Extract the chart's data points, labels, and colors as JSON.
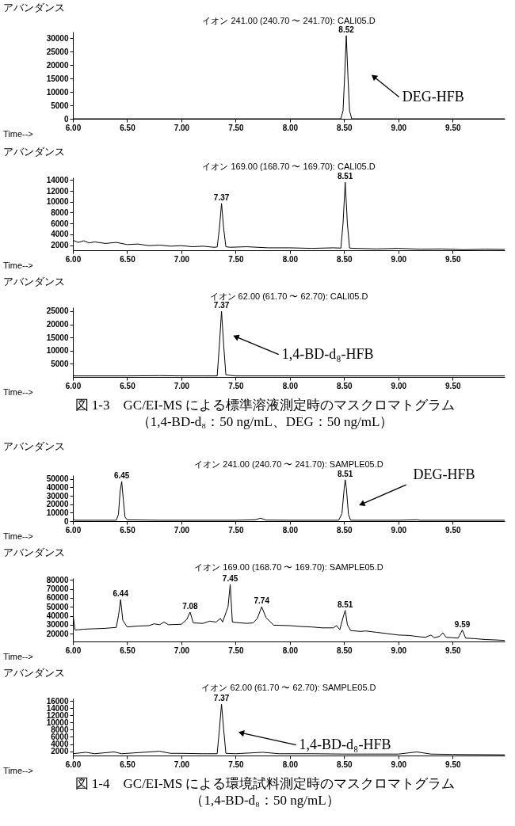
{
  "chart_data": [
    {
      "type": "line",
      "title": "イオン 241.00 (240.70 〜 241.70): CALI05.D",
      "xlabel": "Time-->",
      "ylabel": "アバンダンス",
      "xlim": [
        6.0,
        9.98
      ],
      "xticks": [
        {
          "value": 6,
          "label": "6.00"
        },
        {
          "value": 6.5,
          "label": "6.50"
        },
        {
          "value": 7,
          "label": "7.00"
        },
        {
          "value": 7.5,
          "label": "7.50"
        },
        {
          "value": 8,
          "label": "8.00"
        },
        {
          "value": 8.5,
          "label": "8.50"
        },
        {
          "value": 9,
          "label": "9.00"
        },
        {
          "value": 9.5,
          "label": "9.50"
        }
      ],
      "ylim": [
        0,
        32500
      ],
      "yticks": [
        0,
        5000,
        10000,
        15000,
        20000,
        25000,
        30000
      ],
      "series": [
        {
          "color": "#000000",
          "x": [
            6.0,
            6.5,
            7.0,
            7.5,
            8.0,
            8.47,
            8.49,
            8.505,
            8.52,
            8.535,
            8.55,
            8.57,
            9.0,
            9.5,
            9.98
          ],
          "values": [
            0,
            0,
            0,
            0,
            0,
            0,
            3000,
            16000,
            31000,
            16000,
            3000,
            0,
            0,
            0,
            0
          ]
        }
      ],
      "annotations": [
        {
          "text": "8.52",
          "x": 8.52,
          "y": 31000
        },
        {
          "text": "DEG-HFB",
          "x": 8.78,
          "y": 15500
        }
      ]
    },
    {
      "type": "line",
      "title": "イオン 169.00 (168.70 〜 169.70): CALI05.D",
      "xlabel": "Time-->",
      "ylabel": "アバンダンス",
      "xlim": [
        6.0,
        9.98
      ],
      "xticks": [
        {
          "value": 6,
          "label": "6.00"
        },
        {
          "value": 6.5,
          "label": "6.50"
        },
        {
          "value": 7,
          "label": "7.00"
        },
        {
          "value": 7.5,
          "label": "7.50"
        },
        {
          "value": 8,
          "label": "8.00"
        },
        {
          "value": 8.5,
          "label": "8.50"
        },
        {
          "value": 9,
          "label": "9.00"
        },
        {
          "value": 9.5,
          "label": "9.50"
        }
      ],
      "ylim": [
        1050,
        14500
      ],
      "yticks": [
        2000,
        4000,
        6000,
        8000,
        10000,
        12000,
        14000
      ],
      "series": [
        {
          "color": "#000000",
          "x": [
            6.0,
            6.05,
            6.1,
            6.15,
            6.2,
            6.3,
            6.4,
            6.5,
            6.6,
            6.7,
            6.8,
            6.9,
            7.0,
            7.1,
            7.2,
            7.3,
            7.33,
            7.35,
            7.37,
            7.39,
            7.41,
            7.45,
            7.6,
            7.8,
            8.0,
            8.2,
            8.4,
            8.47,
            8.49,
            8.51,
            8.53,
            8.55,
            8.6,
            8.8,
            9.0,
            9.2,
            9.4,
            9.6,
            9.8,
            9.98
          ],
          "values": [
            2900,
            2500,
            2800,
            2400,
            2600,
            2300,
            2500,
            2100,
            2200,
            1900,
            2000,
            1800,
            1900,
            1700,
            1800,
            1600,
            1650,
            5000,
            9700,
            5000,
            1700,
            1600,
            1700,
            1500,
            1500,
            1400,
            1500,
            1450,
            6000,
            13600,
            6000,
            1450,
            1400,
            1300,
            1400,
            1250,
            1300,
            1150,
            1250,
            1200
          ]
        }
      ],
      "annotations": [
        {
          "text": "7.37",
          "x": 7.37,
          "y": 9700
        },
        {
          "text": "8.51",
          "x": 8.51,
          "y": 13600
        }
      ]
    },
    {
      "type": "line",
      "title": "イオン 62.00 (61.70 〜 62.70): CALI05.D",
      "xlabel": "Time-->",
      "ylabel": "アバンダンス",
      "xlim": [
        6.0,
        9.98
      ],
      "xticks": [
        {
          "value": 6,
          "label": "6.00"
        },
        {
          "value": 6.5,
          "label": "6.50"
        },
        {
          "value": 7,
          "label": "7.00"
        },
        {
          "value": 7.5,
          "label": "7.50"
        },
        {
          "value": 8,
          "label": "8.00"
        },
        {
          "value": 8.5,
          "label": "8.50"
        },
        {
          "value": 9,
          "label": "9.00"
        },
        {
          "value": 9.5,
          "label": "9.50"
        }
      ],
      "ylim": [
        0,
        26500
      ],
      "yticks": [
        5000,
        10000,
        15000,
        20000,
        25000
      ],
      "series": [
        {
          "color": "#000000",
          "x": [
            6.0,
            6.5,
            6.8,
            7.0,
            7.2,
            7.33,
            7.35,
            7.37,
            7.39,
            7.41,
            7.5,
            8.0,
            8.5,
            9.0,
            9.5,
            9.98
          ],
          "values": [
            400,
            400,
            500,
            400,
            400,
            400,
            12000,
            25000,
            12000,
            800,
            400,
            400,
            400,
            400,
            400,
            400
          ]
        }
      ],
      "annotations": [
        {
          "text": "7.37",
          "x": 7.37,
          "y": 25000
        },
        {
          "text": "1,4-BD-d₈-HFB",
          "x": 7.51,
          "y": 15150
        },
        "図 1-3　GC/EI-MS による標準溶液測定時のマスクロマトグラム",
        "（1,4-BD-d₈：50 ng/mL、DEG：50 ng/mL）"
      ]
    },
    {
      "type": "line",
      "title": "イオン 241.00 (240.70 〜 241.70): SAMPLE05.D",
      "xlabel": "Time-->",
      "ylabel": "アバンダンス",
      "xlim": [
        6.0,
        9.98
      ],
      "xticks": [
        {
          "value": 6,
          "label": "6.00"
        },
        {
          "value": 6.5,
          "label": "6.50"
        },
        {
          "value": 7,
          "label": "7.00"
        },
        {
          "value": 7.5,
          "label": "7.50"
        },
        {
          "value": 8,
          "label": "8.00"
        },
        {
          "value": 8.5,
          "label": "8.50"
        },
        {
          "value": 9,
          "label": "9.00"
        },
        {
          "value": 9.5,
          "label": "9.50"
        }
      ],
      "ylim": [
        0,
        54500
      ],
      "yticks": [
        0,
        10000,
        20000,
        30000,
        40000,
        50000
      ],
      "series": [
        {
          "color": "#000000",
          "x": [
            6.0,
            6.02,
            6.2,
            6.4,
            6.42,
            6.435,
            6.45,
            6.465,
            6.48,
            6.5,
            6.8,
            7.0,
            7.5,
            7.68,
            7.73,
            7.78,
            8.0,
            8.45,
            8.48,
            8.5,
            8.51,
            8.52,
            8.54,
            8.56,
            9.0,
            9.17,
            9.2,
            9.5,
            9.98
          ],
          "values": [
            3000,
            1000,
            1000,
            1000,
            8000,
            35000,
            47000,
            25000,
            5000,
            1500,
            1000,
            1000,
            1000,
            1500,
            3500,
            1200,
            1000,
            1000,
            9000,
            38000,
            49000,
            40000,
            8000,
            1000,
            1000,
            1500,
            1000,
            1000,
            1000
          ]
        }
      ],
      "annotations": [
        {
          "text": "6.45",
          "x": 6.45,
          "y": 47000
        },
        {
          "text": "8.51",
          "x": 8.51,
          "y": 49000
        },
        {
          "text": "DEG-HFB",
          "x": 8.67,
          "y": 20500
        }
      ]
    },
    {
      "type": "line",
      "title": "イオン 169.00 (168.70 〜 169.70): SAMPLE05.D",
      "xlabel": "Time-->",
      "ylabel": "アバンダンス",
      "xlim": [
        6.0,
        9.98
      ],
      "xticks": [
        {
          "value": 6,
          "label": "6.00"
        },
        {
          "value": 6.5,
          "label": "6.50"
        },
        {
          "value": 7,
          "label": "7.00"
        },
        {
          "value": 7.5,
          "label": "7.50"
        },
        {
          "value": 8,
          "label": "8.00"
        },
        {
          "value": 8.5,
          "label": "8.50"
        },
        {
          "value": 9,
          "label": "9.00"
        },
        {
          "value": 9.5,
          "label": "9.50"
        }
      ],
      "ylim": [
        11300,
        82000
      ],
      "yticks": [
        20000,
        30000,
        40000,
        50000,
        60000,
        70000,
        80000
      ],
      "series": [
        {
          "color": "#000000",
          "x": [
            6.0,
            6.02,
            6.1,
            6.2,
            6.3,
            6.4,
            6.42,
            6.44,
            6.46,
            6.5,
            6.6,
            6.7,
            6.75,
            6.8,
            6.84,
            6.88,
            7.0,
            7.05,
            7.08,
            7.11,
            7.2,
            7.26,
            7.32,
            7.36,
            7.38,
            7.43,
            7.45,
            7.47,
            7.5,
            7.6,
            7.66,
            7.7,
            7.74,
            7.78,
            7.85,
            8.0,
            8.1,
            8.2,
            8.3,
            8.4,
            8.43,
            8.46,
            8.49,
            8.51,
            8.53,
            8.56,
            8.65,
            8.7,
            8.8,
            9.0,
            9.1,
            9.2,
            9.25,
            9.3,
            9.33,
            9.38,
            9.41,
            9.44,
            9.5,
            9.55,
            9.59,
            9.62,
            9.7,
            9.8,
            9.9,
            9.98
          ],
          "values": [
            42000,
            24000,
            25000,
            25500,
            26000,
            27000,
            40000,
            58000,
            35000,
            27500,
            28500,
            29000,
            31000,
            30000,
            33000,
            30000,
            30500,
            36000,
            44000,
            32000,
            31500,
            34000,
            33000,
            37000,
            33000,
            50000,
            75000,
            33000,
            32500,
            31500,
            32000,
            37000,
            50000,
            38000,
            29500,
            29000,
            28000,
            27500,
            26500,
            26500,
            29000,
            24500,
            38000,
            46000,
            30000,
            23500,
            22500,
            23000,
            21500,
            18500,
            18000,
            16500,
            16000,
            18500,
            15500,
            17000,
            21000,
            16000,
            15500,
            15000,
            24000,
            15000,
            14500,
            13500,
            13000,
            12500
          ]
        }
      ],
      "annotations": [
        {
          "text": "6.44",
          "x": 6.44,
          "y": 58000
        },
        {
          "text": "7.08",
          "x": 7.08,
          "y": 44000
        },
        {
          "text": "7.45",
          "x": 7.45,
          "y": 75000
        },
        {
          "text": "7.74",
          "x": 7.74,
          "y": 50000
        },
        {
          "text": "8.51",
          "x": 8.51,
          "y": 46000
        },
        {
          "text": "9.59",
          "x": 9.59,
          "y": 24000
        }
      ]
    },
    {
      "type": "line",
      "title": "イオン 62.00 (61.70 〜 62.70): SAMPLE05.D",
      "xlabel": "Time-->",
      "ylabel": "アバンダンス",
      "xlim": [
        6.0,
        9.98
      ],
      "xticks": [
        {
          "value": 6,
          "label": "6.00"
        },
        {
          "value": 6.5,
          "label": "6.50"
        },
        {
          "value": 7,
          "label": "7.00"
        },
        {
          "value": 7.5,
          "label": "7.50"
        },
        {
          "value": 8,
          "label": "8.00"
        },
        {
          "value": 8.5,
          "label": "8.50"
        },
        {
          "value": 9,
          "label": "9.00"
        },
        {
          "value": 9.5,
          "label": "9.50"
        }
      ],
      "ylim": [
        800,
        16700
      ],
      "yticks": [
        2000,
        4000,
        6000,
        8000,
        10000,
        12000,
        14000,
        16000
      ],
      "series": [
        {
          "color": "#000000",
          "x": [
            6.0,
            6.12,
            6.2,
            6.38,
            6.45,
            6.8,
            6.9,
            7.0,
            7.2,
            7.33,
            7.35,
            7.37,
            7.39,
            7.41,
            7.5,
            7.75,
            7.9,
            8.2,
            8.5,
            9.0,
            9.17,
            9.3,
            9.5,
            9.98
          ],
          "values": [
            1300,
            1700,
            1300,
            1800,
            1300,
            2000,
            1400,
            1400,
            1300,
            1300,
            8000,
            15100,
            8000,
            1400,
            1300,
            1700,
            1300,
            1300,
            1200,
            1200,
            1800,
            1200,
            1100,
            1000
          ]
        }
      ],
      "annotations": [
        {
          "text": "7.37",
          "x": 7.37,
          "y": 15100
        },
        {
          "text": "1,4-BD-d₈-HFB",
          "x": 7.56,
          "y": 7060
        },
        "図 1-4　GC/EI-MS による環境試料測定時のマスクロマトグラム",
        "（1,4-BD-d₈：50 ng/mL）"
      ]
    }
  ]
}
